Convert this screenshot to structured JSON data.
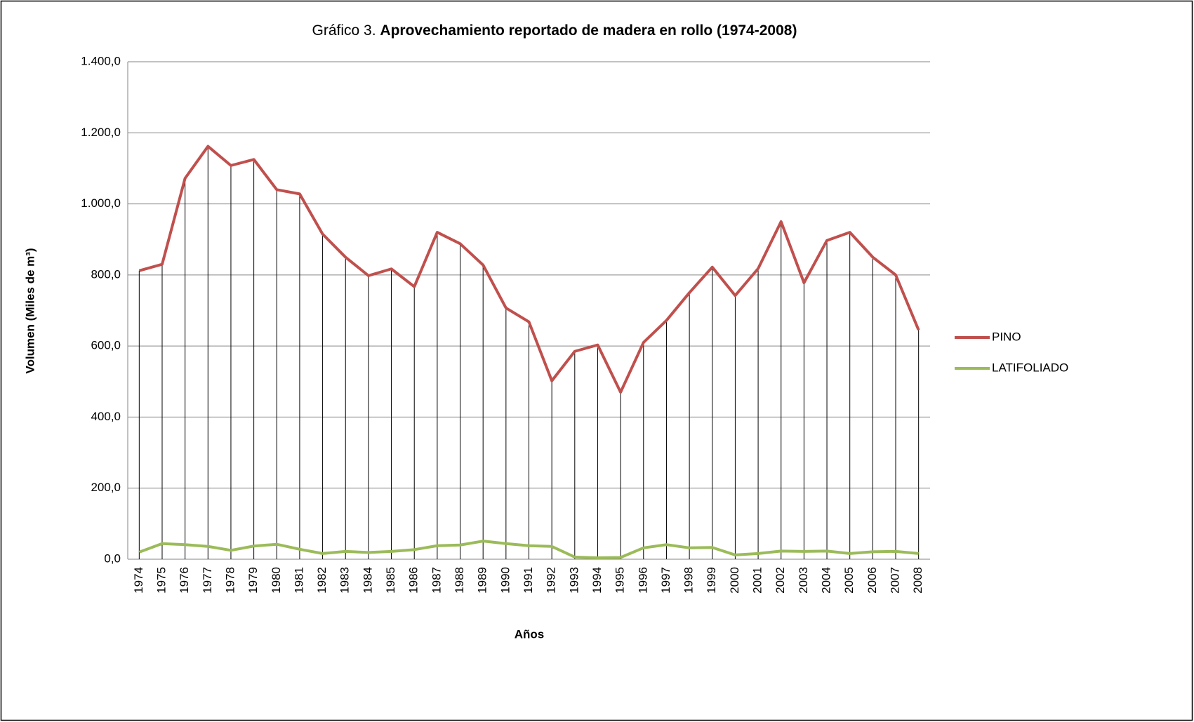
{
  "chart_data": {
    "type": "line",
    "title_label": "Gráfico 3.",
    "title": "Aprovechamiento reportado de madera en rollo (1974-2008)",
    "x_label": "Años",
    "y_label": "Volumen (Miles de m³)",
    "categories": [
      "1974",
      "1975",
      "1976",
      "1977",
      "1978",
      "1979",
      "1980",
      "1981",
      "1982",
      "1983",
      "1984",
      "1985",
      "1986",
      "1987",
      "1988",
      "1989",
      "1990",
      "1991",
      "1992",
      "1993",
      "1994",
      "1995",
      "1996",
      "1997",
      "1998",
      "1999",
      "2000",
      "2001",
      "2002",
      "2003",
      "2004",
      "2005",
      "2006",
      "2007",
      "2008"
    ],
    "series": [
      {
        "name": "PINO",
        "color": "#c0504d",
        "values": [
          812,
          830,
          1072,
          1162,
          1108,
          1125,
          1040,
          1028,
          915,
          850,
          798,
          817,
          767,
          920,
          888,
          828,
          707,
          668,
          502,
          585,
          603,
          470,
          610,
          672,
          750,
          822,
          742,
          818,
          950,
          778,
          897,
          920,
          850,
          800,
          645
        ]
      },
      {
        "name": "LATIFOLIADO",
        "color": "#9bbb59",
        "values": [
          20,
          44,
          41,
          36,
          25,
          37,
          42,
          28,
          16,
          22,
          19,
          22,
          27,
          38,
          40,
          51,
          44,
          38,
          36,
          6,
          4,
          5,
          32,
          41,
          32,
          33,
          12,
          16,
          23,
          22,
          23,
          16,
          21,
          22,
          16
        ]
      }
    ],
    "ylim": [
      0,
      1400
    ],
    "yticks": [
      {
        "value": 0,
        "label": "0,0"
      },
      {
        "value": 200,
        "label": "200,0"
      },
      {
        "value": 400,
        "label": "400,0"
      },
      {
        "value": 600,
        "label": "600,0"
      },
      {
        "value": 800,
        "label": "800,0"
      },
      {
        "value": 1000,
        "label": "1.000,0"
      },
      {
        "value": 1200,
        "label": "1.200,0"
      },
      {
        "value": 1400,
        "label": "1.400,0"
      }
    ],
    "grid": true,
    "drop_lines": true,
    "legend": "right"
  }
}
